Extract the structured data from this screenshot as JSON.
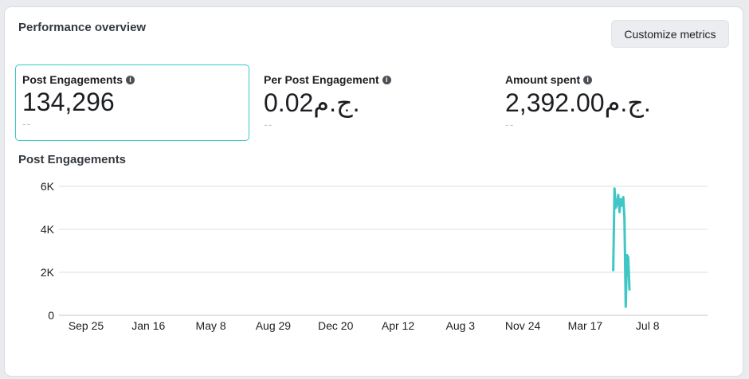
{
  "card": {
    "title": "Performance overview",
    "customize_label": "Customize metrics"
  },
  "metrics": [
    {
      "label": "Post Engagements",
      "value": "134,296",
      "sub": "--",
      "selected": true
    },
    {
      "label": "Per Post Engagement",
      "value": "0.02ج.م.",
      "sub": "--",
      "selected": false
    },
    {
      "label": "Amount spent",
      "value": "2,392.00ج.م.",
      "sub": "--",
      "selected": false
    }
  ],
  "colors": {
    "accent": "#37c7c8",
    "line": "#3fc6c5",
    "grid": "#dadde1"
  },
  "chart_data": {
    "type": "line",
    "title": "Post Engagements",
    "y_ticks": [
      "0",
      "2K",
      "4K",
      "6K"
    ],
    "ylim": [
      0,
      6000
    ],
    "x_ticks": [
      "Sep 25",
      "Jan 16",
      "May 8",
      "Aug 29",
      "Dec 20",
      "Apr 12",
      "Aug 3",
      "Nov 24",
      "Mar 17",
      "Jul 8"
    ],
    "series": [
      {
        "values": [
          [
            8.45,
            2100
          ],
          [
            8.47,
            5900
          ],
          [
            8.49,
            5000
          ],
          [
            8.51,
            5200
          ],
          [
            8.53,
            5600
          ],
          [
            8.55,
            4800
          ],
          [
            8.57,
            5400
          ],
          [
            8.59,
            5100
          ],
          [
            8.61,
            5500
          ],
          [
            8.63,
            4500
          ],
          [
            8.65,
            400
          ],
          [
            8.67,
            2800
          ],
          [
            8.69,
            2700
          ],
          [
            8.71,
            1200
          ]
        ]
      }
    ]
  }
}
